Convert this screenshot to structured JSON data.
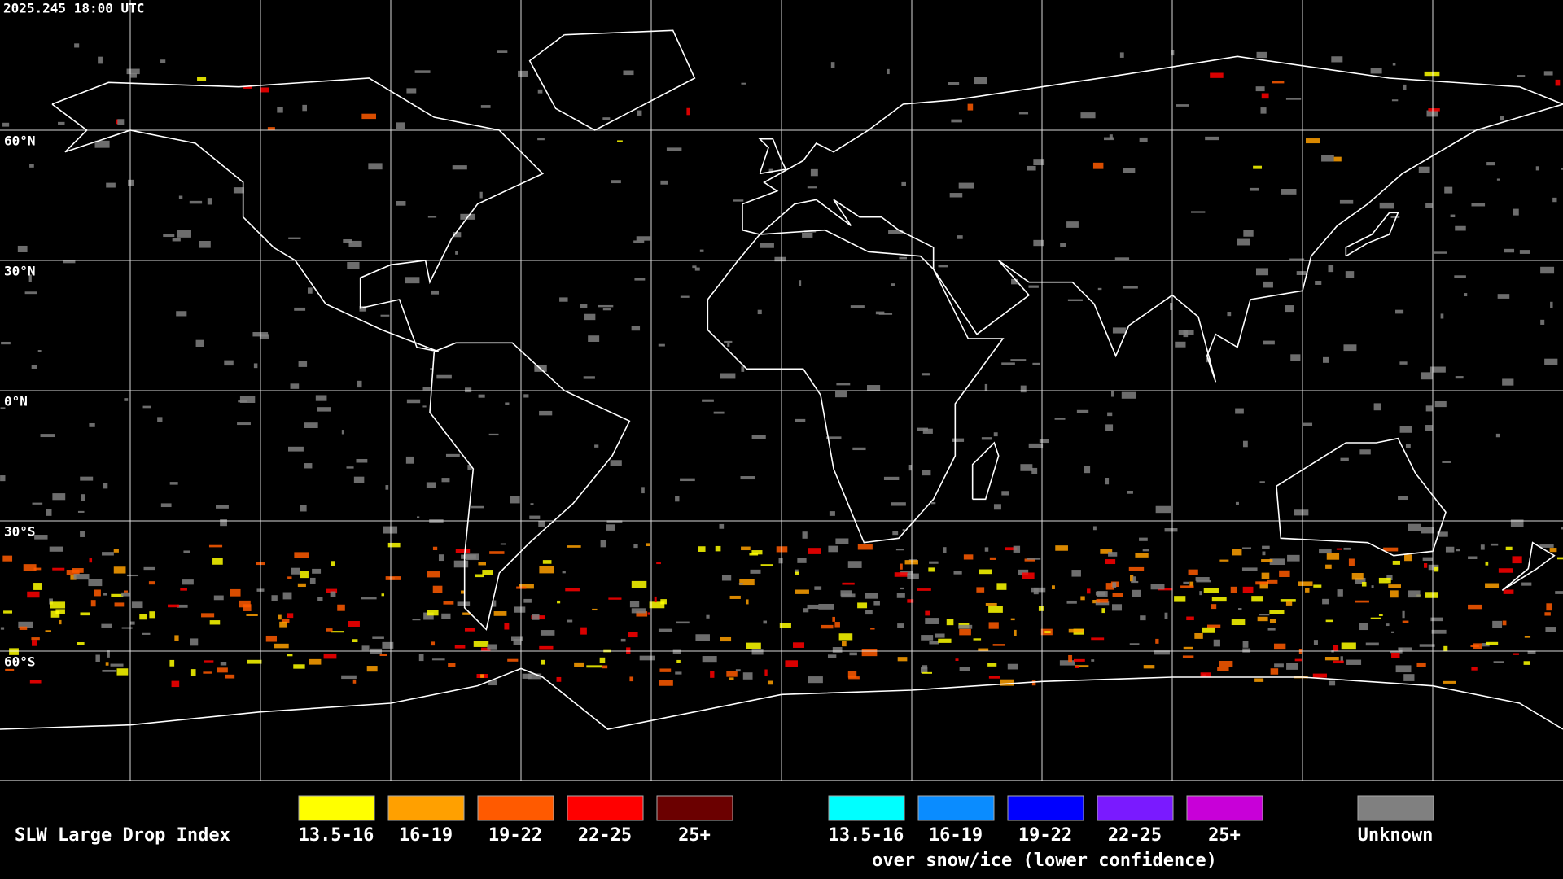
{
  "header": {
    "timestamp": "2025.245 18:00 UTC"
  },
  "map": {
    "latitude_labels": [
      "60°N",
      "30°N",
      "0°N",
      "30°S",
      "60°S"
    ]
  },
  "legend": {
    "title": "SLW Large Drop Index",
    "groups": [
      {
        "items": [
          {
            "label": "13.5-16",
            "color": "#ffff00"
          },
          {
            "label": "16-19",
            "color": "#ffa000"
          },
          {
            "label": "19-22",
            "color": "#ff5a00"
          },
          {
            "label": "22-25",
            "color": "#ff0000"
          },
          {
            "label": "25+",
            "color": "#6b0000"
          }
        ]
      },
      {
        "items": [
          {
            "label": "13.5-16",
            "color": "#00ffff"
          },
          {
            "label": "16-19",
            "color": "#0a8cff"
          },
          {
            "label": "19-22",
            "color": "#0000ff"
          },
          {
            "label": "22-25",
            "color": "#7a1aff"
          },
          {
            "label": "25+",
            "color": "#c800d8"
          }
        ],
        "caption": "over snow/ice (lower confidence)"
      }
    ],
    "unknown": {
      "label": "Unknown",
      "color": "#808080"
    }
  }
}
